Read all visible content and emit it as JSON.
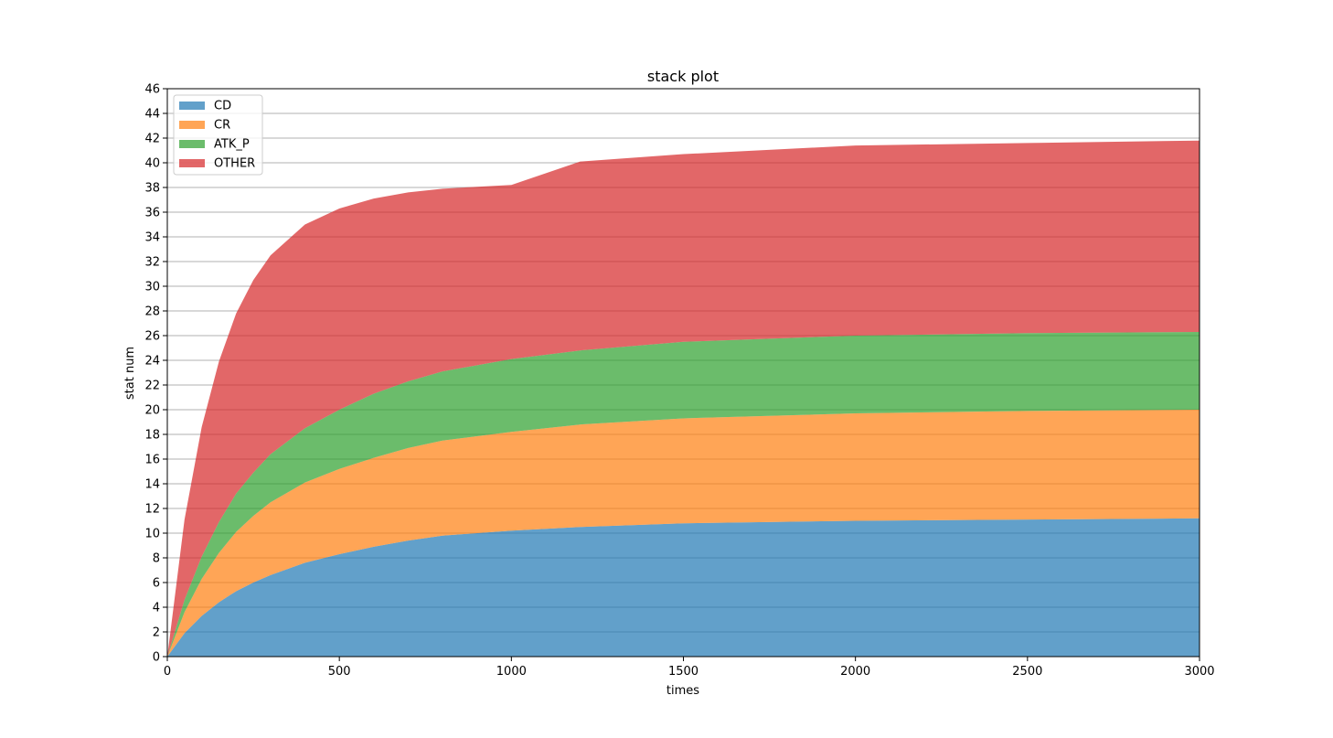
{
  "chart_data": {
    "type": "area",
    "stacked": true,
    "title": "stack plot",
    "xlabel": "times",
    "ylabel": "stat num",
    "xlim": [
      0,
      3000
    ],
    "ylim": [
      0,
      46
    ],
    "xticks": [
      0,
      500,
      1000,
      1500,
      2000,
      2500,
      3000
    ],
    "yticks": [
      0,
      2,
      4,
      6,
      8,
      10,
      12,
      14,
      16,
      18,
      20,
      22,
      24,
      26,
      28,
      30,
      32,
      34,
      36,
      38,
      40,
      42,
      44,
      46
    ],
    "grid": "horizontal",
    "legend_position": "top-left",
    "x": [
      0,
      50,
      100,
      150,
      200,
      250,
      300,
      400,
      500,
      600,
      700,
      800,
      1000,
      1200,
      1500,
      2000,
      2500,
      3000
    ],
    "series": [
      {
        "name": "CD",
        "color": "#1f77b4",
        "values": [
          0,
          1.9,
          3.3,
          4.4,
          5.3,
          6.0,
          6.6,
          7.6,
          8.3,
          8.9,
          9.4,
          9.8,
          10.2,
          10.5,
          10.8,
          11.0,
          11.1,
          11.2
        ]
      },
      {
        "name": "CR",
        "color": "#ff7f0e",
        "values": [
          0,
          1.7,
          3.0,
          4.0,
          4.8,
          5.4,
          5.9,
          6.5,
          6.9,
          7.2,
          7.5,
          7.7,
          8.0,
          8.3,
          8.5,
          8.7,
          8.8,
          8.8
        ]
      },
      {
        "name": "ATK_P",
        "color": "#2ca02c",
        "values": [
          0,
          1.0,
          1.8,
          2.5,
          3.1,
          3.5,
          3.9,
          4.4,
          4.8,
          5.2,
          5.4,
          5.6,
          5.9,
          6.0,
          6.2,
          6.3,
          6.3,
          6.3
        ]
      },
      {
        "name": "OTHER",
        "color": "#d62728",
        "values": [
          0,
          6.5,
          10.5,
          13.0,
          14.6,
          15.6,
          16.1,
          16.5,
          16.3,
          15.8,
          15.3,
          14.8,
          14.1,
          15.3,
          15.2,
          15.4,
          15.4,
          15.5
        ]
      }
    ]
  }
}
